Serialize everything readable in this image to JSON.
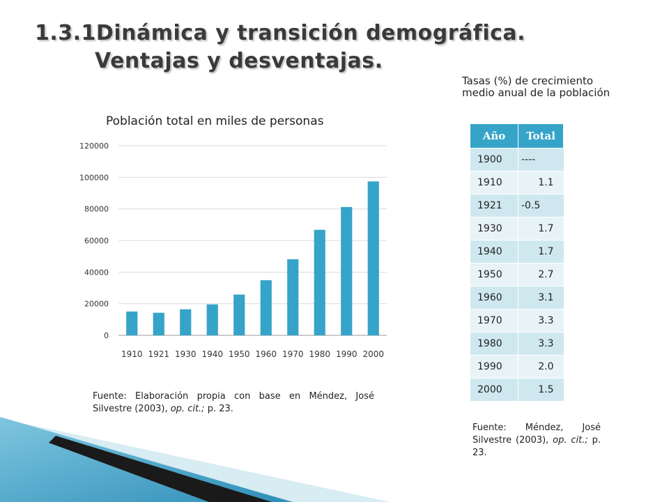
{
  "slide": {
    "title_line1": "1.3.1Dinámica y transición demográfica.",
    "title_line2": "Ventajas y desventajas."
  },
  "chart_data": {
    "type": "bar",
    "title": "Población total en miles de personas",
    "categories": [
      "1910",
      "1921",
      "1930",
      "1940",
      "1950",
      "1960",
      "1970",
      "1980",
      "1990",
      "2000"
    ],
    "values": [
      15100,
      14300,
      16500,
      19600,
      25800,
      34900,
      48200,
      66800,
      81200,
      97400
    ],
    "ylim": [
      0,
      120000
    ],
    "yticks": [
      0,
      20000,
      40000,
      60000,
      80000,
      100000,
      120000
    ],
    "grid": true,
    "color": "#35a4c8"
  },
  "fuente_left": {
    "prefix": "Fuente: Elaboración propia con base en Méndez, José Silvestre (2003), ",
    "italic": "op. cit.;",
    "suffix": " p. 23."
  },
  "table": {
    "title": "Tasas (%) de crecimiento medio anual de la población",
    "headers": [
      "Año",
      "Total"
    ],
    "rows": [
      [
        "1900",
        "----"
      ],
      [
        "1910",
        "1.1"
      ],
      [
        "1921",
        "-0.5"
      ],
      [
        "1930",
        "1.7"
      ],
      [
        "1940",
        "1.7"
      ],
      [
        "1950",
        "2.7"
      ],
      [
        "1960",
        "3.1"
      ],
      [
        "1970",
        "3.3"
      ],
      [
        "1980",
        "3.3"
      ],
      [
        "1990",
        "2.0"
      ],
      [
        "2000",
        "1.5"
      ]
    ]
  },
  "fuente_right": {
    "prefix": "Fuente: Méndez, José Silvestre (2003), ",
    "italic": "op. cit.;",
    "suffix": " p. 23."
  }
}
